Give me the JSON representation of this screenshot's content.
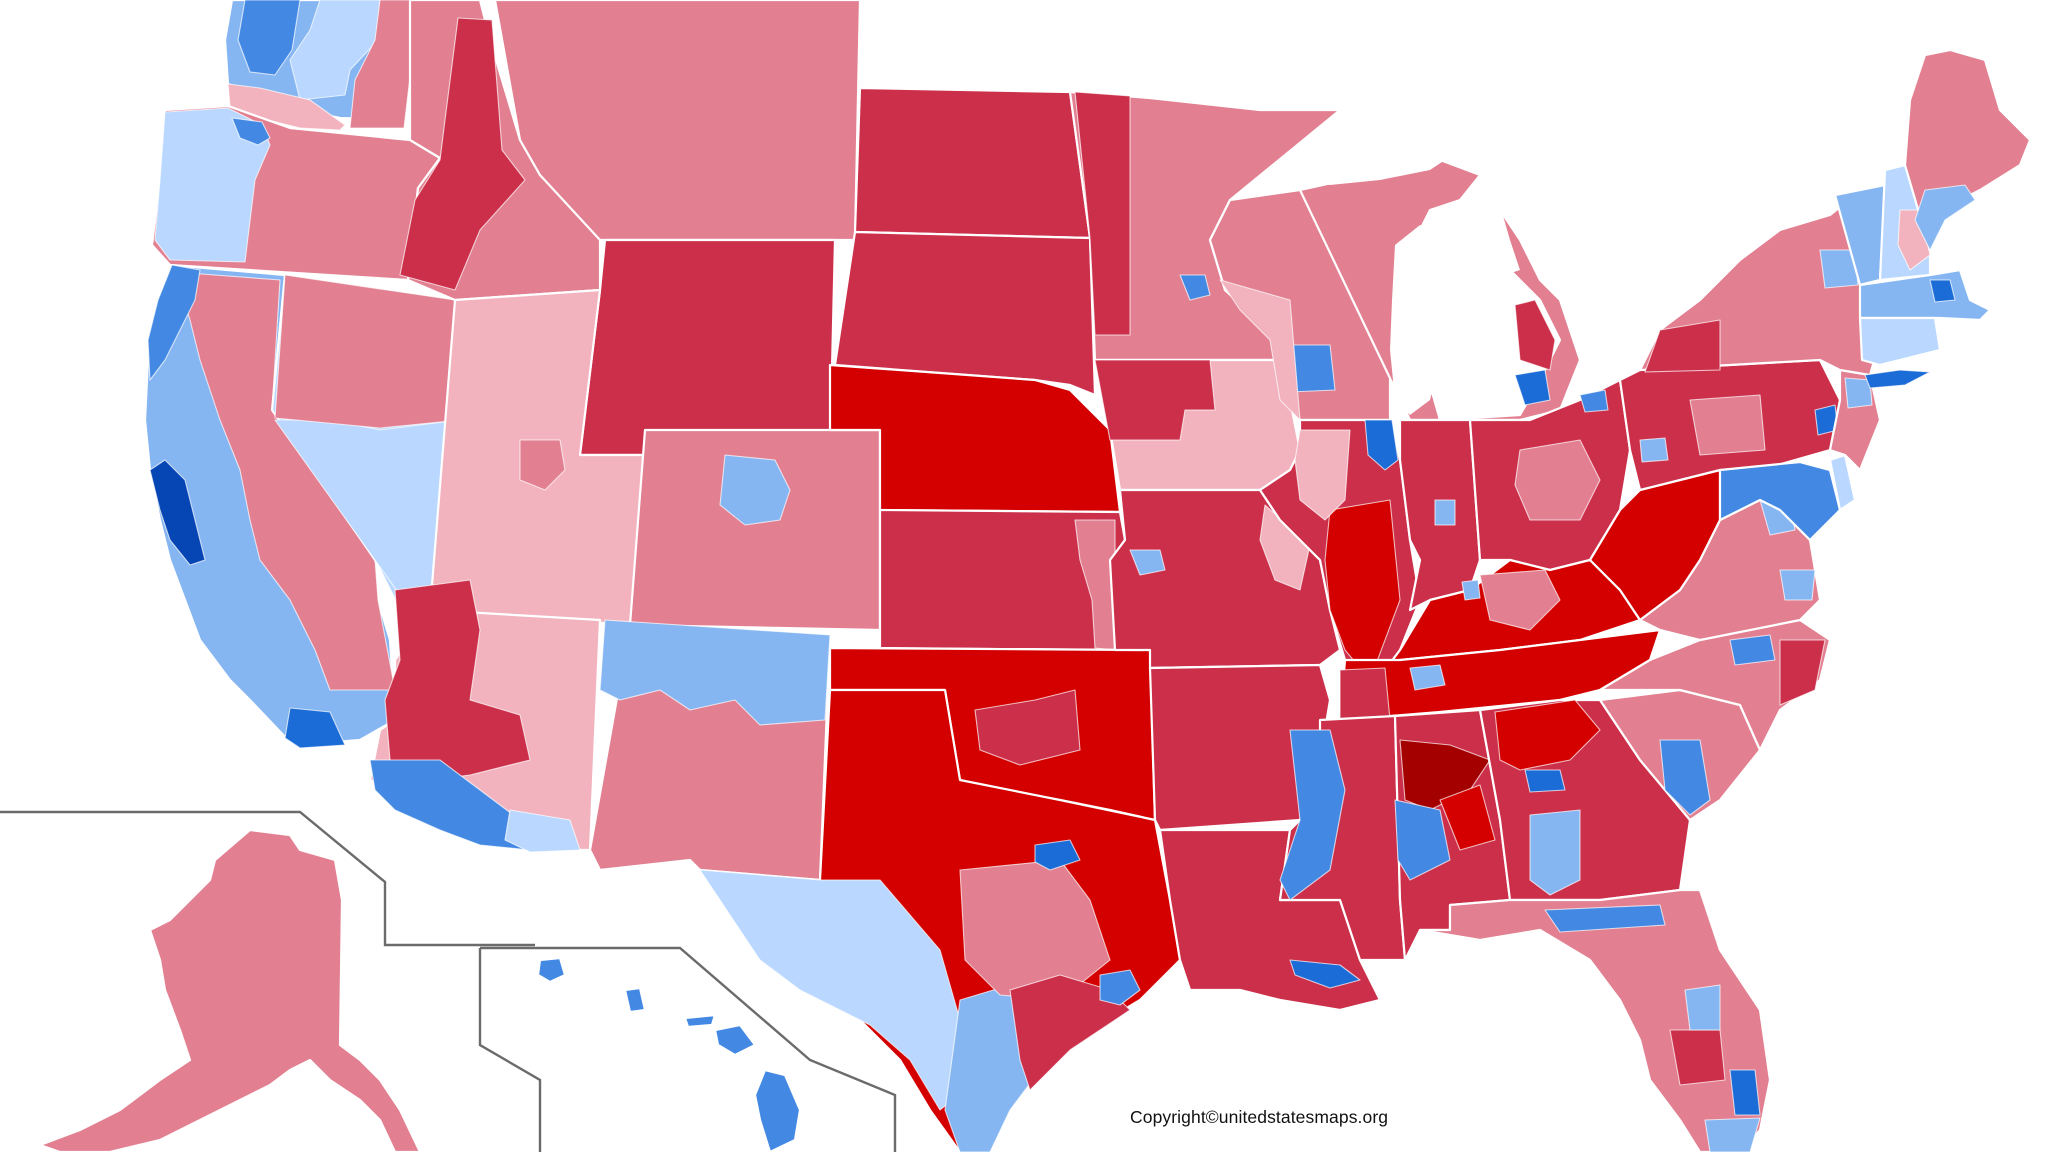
{
  "map": {
    "type": "choropleth",
    "subject": "United States congressional districts by party margin",
    "insets": [
      "Alaska",
      "Hawaii"
    ],
    "copyright": "Copyright©unitedstatesmaps.org"
  },
  "palette": {
    "rep_darkest": "#a50000",
    "rep_strong": "#d40000",
    "rep_solid": "#cc2f4a",
    "rep_likely": "#e27f90",
    "rep_lean": "#f2b3be",
    "dem_lean": "#b9d7ff",
    "dem_likely": "#86b6f2",
    "dem_solid": "#4389e3",
    "dem_strong": "#1c6cd7",
    "dem_darkest": "#0645b4",
    "border": "#ffffff",
    "inset_border": "#6b6b6b",
    "background": "#ffffff"
  },
  "regions": [
    {
      "id": "WA",
      "name": "Washington",
      "fill": "dem_likely"
    },
    {
      "id": "OR",
      "name": "Oregon",
      "fill": "rep_likely"
    },
    {
      "id": "CA",
      "name": "California",
      "fill": "dem_likely"
    },
    {
      "id": "NV",
      "name": "Nevada",
      "fill": "dem_lean"
    },
    {
      "id": "ID",
      "name": "Idaho",
      "fill": "rep_likely"
    },
    {
      "id": "MT",
      "name": "Montana",
      "fill": "rep_likely"
    },
    {
      "id": "WY",
      "name": "Wyoming",
      "fill": "rep_solid"
    },
    {
      "id": "UT",
      "name": "Utah",
      "fill": "rep_lean"
    },
    {
      "id": "AZ",
      "name": "Arizona",
      "fill": "rep_lean"
    },
    {
      "id": "CO",
      "name": "Colorado",
      "fill": "rep_likely"
    },
    {
      "id": "NM",
      "name": "New Mexico",
      "fill": "rep_likely"
    },
    {
      "id": "ND",
      "name": "North Dakota",
      "fill": "rep_solid"
    },
    {
      "id": "SD",
      "name": "South Dakota",
      "fill": "rep_solid"
    },
    {
      "id": "NE",
      "name": "Nebraska",
      "fill": "rep_strong"
    },
    {
      "id": "KS",
      "name": "Kansas",
      "fill": "rep_solid"
    },
    {
      "id": "OK",
      "name": "Oklahoma",
      "fill": "rep_strong"
    },
    {
      "id": "TX",
      "name": "Texas",
      "fill": "rep_strong"
    },
    {
      "id": "MN",
      "name": "Minnesota",
      "fill": "rep_likely"
    },
    {
      "id": "IA",
      "name": "Iowa",
      "fill": "rep_lean"
    },
    {
      "id": "MO",
      "name": "Missouri",
      "fill": "rep_solid"
    },
    {
      "id": "AR",
      "name": "Arkansas",
      "fill": "rep_solid"
    },
    {
      "id": "LA",
      "name": "Louisiana",
      "fill": "rep_solid"
    },
    {
      "id": "WI",
      "name": "Wisconsin",
      "fill": "rep_likely"
    },
    {
      "id": "IL",
      "name": "Illinois",
      "fill": "rep_solid"
    },
    {
      "id": "MI",
      "name": "Michigan",
      "fill": "rep_likely"
    },
    {
      "id": "IN",
      "name": "Indiana",
      "fill": "rep_solid"
    },
    {
      "id": "OH",
      "name": "Ohio",
      "fill": "rep_solid"
    },
    {
      "id": "KY",
      "name": "Kentucky",
      "fill": "rep_strong"
    },
    {
      "id": "TN",
      "name": "Tennessee",
      "fill": "rep_strong"
    },
    {
      "id": "MS",
      "name": "Mississippi",
      "fill": "rep_solid"
    },
    {
      "id": "AL",
      "name": "Alabama",
      "fill": "rep_solid"
    },
    {
      "id": "GA",
      "name": "Georgia",
      "fill": "rep_solid"
    },
    {
      "id": "FL",
      "name": "Florida",
      "fill": "rep_likely"
    },
    {
      "id": "SC",
      "name": "South Carolina",
      "fill": "rep_likely"
    },
    {
      "id": "NC",
      "name": "North Carolina",
      "fill": "rep_likely"
    },
    {
      "id": "VA",
      "name": "Virginia",
      "fill": "rep_likely"
    },
    {
      "id": "WV",
      "name": "West Virginia",
      "fill": "rep_strong"
    },
    {
      "id": "PA",
      "name": "Pennsylvania",
      "fill": "rep_solid"
    },
    {
      "id": "NY",
      "name": "New York",
      "fill": "rep_likely"
    },
    {
      "id": "VT",
      "name": "Vermont",
      "fill": "dem_likely"
    },
    {
      "id": "NH",
      "name": "New Hampshire",
      "fill": "dem_lean"
    },
    {
      "id": "ME",
      "name": "Maine",
      "fill": "rep_likely"
    },
    {
      "id": "MA",
      "name": "Massachusetts",
      "fill": "dem_likely"
    },
    {
      "id": "CT",
      "name": "Connecticut",
      "fill": "dem_lean"
    },
    {
      "id": "NJ",
      "name": "New Jersey",
      "fill": "rep_likely"
    },
    {
      "id": "MD",
      "name": "Maryland",
      "fill": "dem_solid"
    },
    {
      "id": "DE",
      "name": "Delaware",
      "fill": "dem_lean"
    },
    {
      "id": "AK",
      "name": "Alaska",
      "fill": "rep_likely"
    },
    {
      "id": "HI",
      "name": "Hawaii",
      "fill": "dem_solid"
    }
  ]
}
